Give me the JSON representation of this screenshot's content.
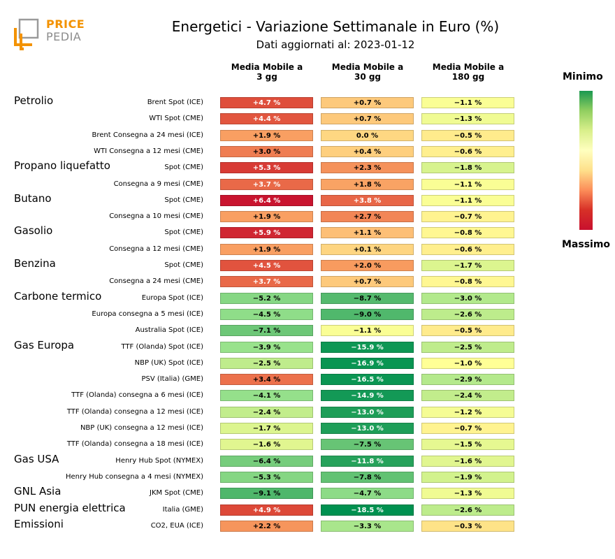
{
  "logo": {
    "word1": "PRICE",
    "word2": "PEDIA",
    "accent": "#f39200",
    "gray": "#8c8c8c"
  },
  "header": {
    "title": "Energetici - Variazione Settimanale in Euro (%)",
    "subtitle": "Dati aggiornati al: 2023-01-12"
  },
  "columns": [
    {
      "line1": "Media Mobile a",
      "line2": "3 gg"
    },
    {
      "line1": "Media Mobile a",
      "line2": "30 gg"
    },
    {
      "line1": "Media Mobile a",
      "line2": "180 gg"
    }
  ],
  "colorbar": {
    "min_label": "Minimo",
    "max_label": "Massimo"
  },
  "chart_data": {
    "type": "heatmap",
    "title": "Energetici - Variazione Settimanale in Euro (%)",
    "subtitle": "Dati aggiornati al: 2023-01-12",
    "columns": [
      "Media Mobile a 3 gg",
      "Media Mobile a 30 gg",
      "Media Mobile a 180 gg"
    ],
    "unit": "%",
    "groups": [
      {
        "name": "Petrolio",
        "rows": [
          {
            "label": "Brent Spot (ICE)",
            "values": [
              "+4.7",
              "+0.7",
              "−1.1"
            ]
          },
          {
            "label": "WTI Spot (CME)",
            "values": [
              "+4.4",
              "+0.7",
              "−1.3"
            ]
          },
          {
            "label": "Brent Consegna a 24 mesi (ICE)",
            "values": [
              "+1.9",
              "0.0",
              "−0.5"
            ]
          },
          {
            "label": "WTI Consegna a 12 mesi (CME)",
            "values": [
              "+3.0",
              "+0.4",
              "−0.6"
            ]
          }
        ]
      },
      {
        "name": "Propano liquefatto",
        "rows": [
          {
            "label": "Spot (CME)",
            "values": [
              "+5.3",
              "+2.3",
              "−1.8"
            ]
          },
          {
            "label": "Consegna a 9 mesi (CME)",
            "values": [
              "+3.7",
              "+1.8",
              "−1.1"
            ]
          }
        ]
      },
      {
        "name": "Butano",
        "rows": [
          {
            "label": "Spot (CME)",
            "values": [
              "+6.4",
              "+3.8",
              "−1.1"
            ]
          },
          {
            "label": "Consegna a 10 mesi (CME)",
            "values": [
              "+1.9",
              "+2.7",
              "−0.7"
            ]
          }
        ]
      },
      {
        "name": "Gasolio",
        "rows": [
          {
            "label": "Spot (CME)",
            "values": [
              "+5.9",
              "+1.1",
              "−0.8"
            ]
          },
          {
            "label": "Consegna a 12 mesi (CME)",
            "values": [
              "+1.9",
              "+0.1",
              "−0.6"
            ]
          }
        ]
      },
      {
        "name": "Benzina",
        "rows": [
          {
            "label": "Spot (CME)",
            "values": [
              "+4.5",
              "+2.0",
              "−1.7"
            ]
          },
          {
            "label": "Consegna a 24 mesi (CME)",
            "values": [
              "+3.7",
              "+0.7",
              "−0.8"
            ]
          }
        ]
      },
      {
        "name": "Carbone termico",
        "rows": [
          {
            "label": "Europa Spot (ICE)",
            "values": [
              "−5.2",
              "−8.7",
              "−3.0"
            ]
          },
          {
            "label": "Europa consegna a 5 mesi (ICE)",
            "values": [
              "−4.5",
              "−9.0",
              "−2.6"
            ]
          },
          {
            "label": "Australia Spot (ICE)",
            "values": [
              "−7.1",
              "−1.1",
              "−0.5"
            ]
          }
        ]
      },
      {
        "name": "Gas Europa",
        "rows": [
          {
            "label": "TTF (Olanda) Spot (ICE)",
            "values": [
              "−3.9",
              "−15.9",
              "−2.5"
            ]
          },
          {
            "label": "NBP (UK) Spot (ICE)",
            "values": [
              "−2.5",
              "−16.9",
              "−1.0"
            ]
          },
          {
            "label": "PSV (Italia) (GME)",
            "values": [
              "+3.4",
              "−16.5",
              "−2.9"
            ]
          },
          {
            "label": "TTF (Olanda) consegna a 6 mesi (ICE)",
            "values": [
              "−4.1",
              "−14.9",
              "−2.4"
            ]
          },
          {
            "label": "TTF (Olanda) consegna a 12 mesi (ICE)",
            "values": [
              "−2.4",
              "−13.0",
              "−1.2"
            ]
          },
          {
            "label": "NBP (UK) consegna a 12 mesi (ICE)",
            "values": [
              "−1.7",
              "−13.0",
              "−0.7"
            ]
          },
          {
            "label": "TTF (Olanda) consegna a 18 mesi (ICE)",
            "values": [
              "−1.6",
              "−7.5",
              "−1.5"
            ]
          }
        ]
      },
      {
        "name": "Gas USA",
        "rows": [
          {
            "label": "Henry Hub Spot (NYMEX)",
            "values": [
              "−6.4",
              "−11.8",
              "−1.6"
            ]
          },
          {
            "label": "Henry Hub consegna a 4 mesi (NYMEX)",
            "values": [
              "−5.3",
              "−7.8",
              "−1.9"
            ]
          }
        ]
      },
      {
        "name": "GNL Asia",
        "rows": [
          {
            "label": "JKM Spot (CME)",
            "values": [
              "−9.1",
              "−4.7",
              "−1.3"
            ]
          }
        ]
      },
      {
        "name": "PUN energia elettrica",
        "rows": [
          {
            "label": "Italia (GME)",
            "values": [
              "+4.9",
              "−18.5",
              "−2.6"
            ]
          }
        ]
      },
      {
        "name": "Emissioni",
        "rows": [
          {
            "label": "CO2, EUA (ICE)",
            "values": [
              "+2.2",
              "−3.3",
              "−0.3"
            ]
          }
        ]
      }
    ],
    "colorscale": {
      "min_color": "#1a9850",
      "mid_color": "#ffffbf",
      "max_color": "#c8102e"
    }
  }
}
